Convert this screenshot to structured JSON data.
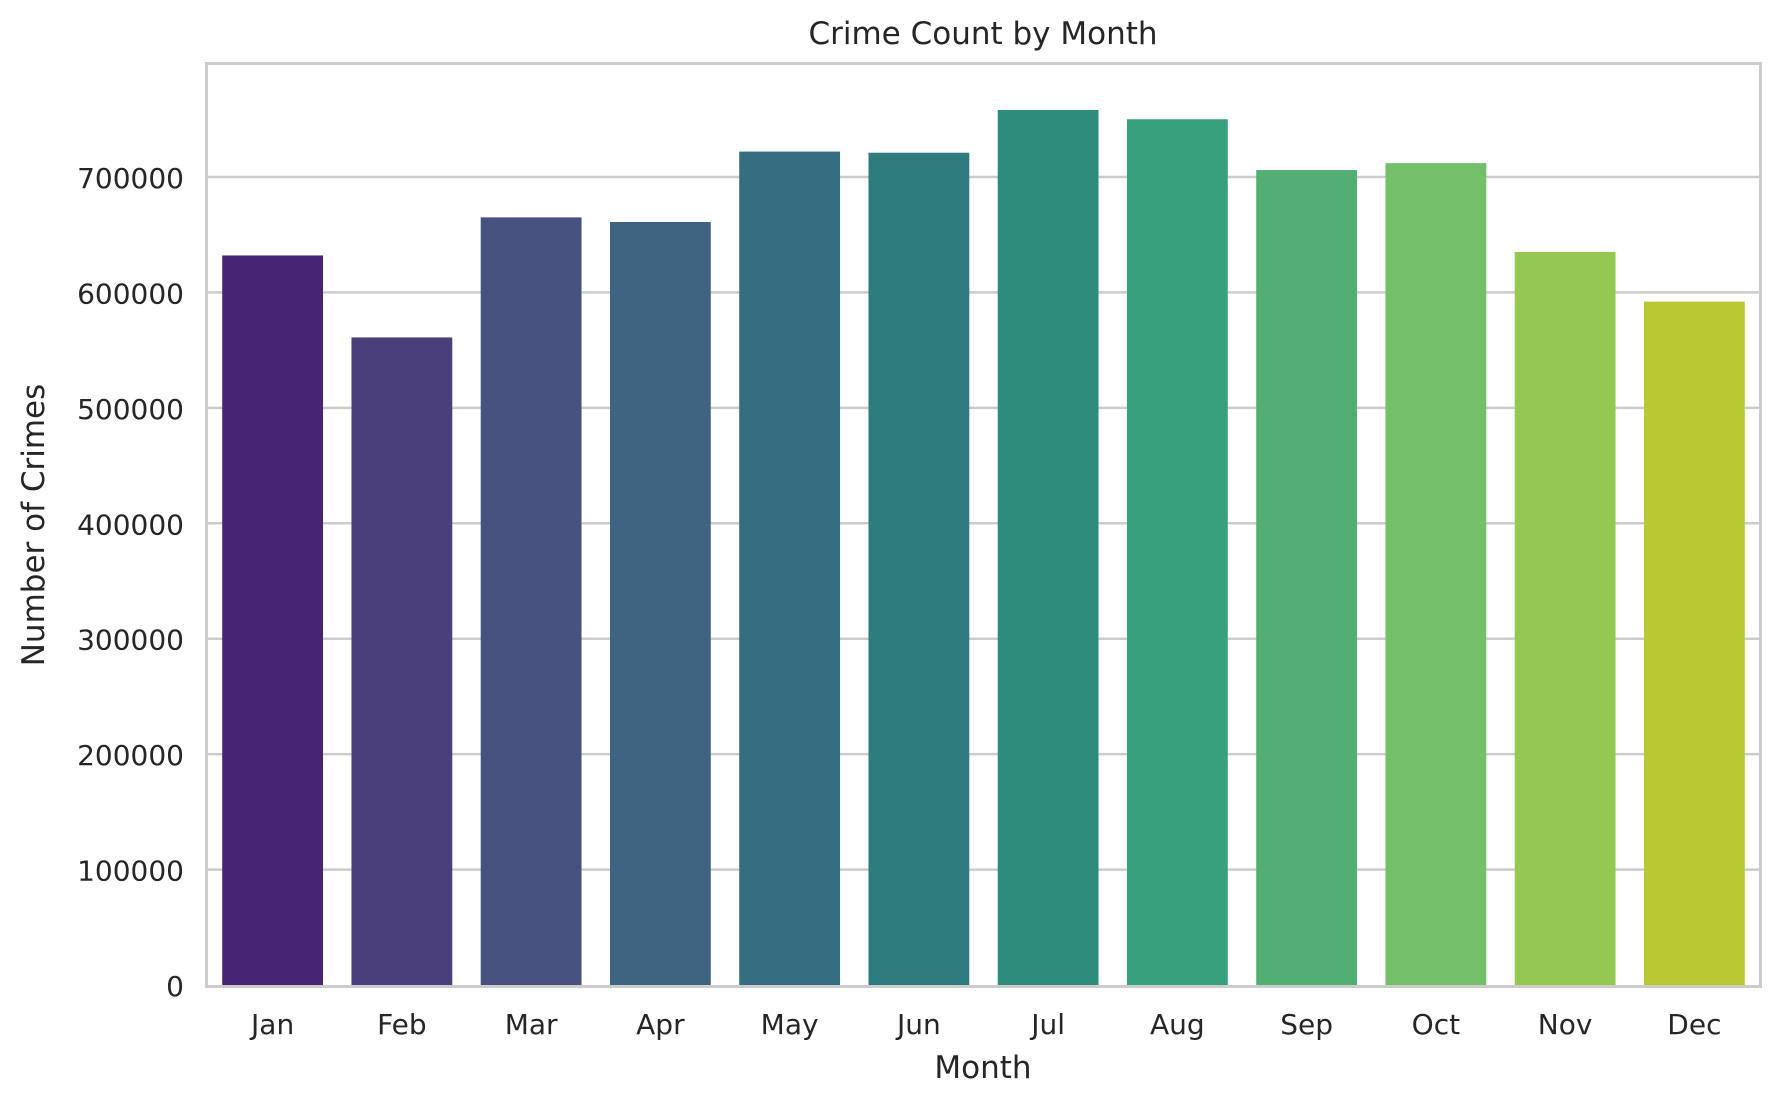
{
  "chart_data": {
    "type": "bar",
    "title": "Crime Count by Month",
    "xlabel": "Month",
    "ylabel": "Number of Crimes",
    "categories": [
      "Jan",
      "Feb",
      "Mar",
      "Apr",
      "May",
      "Jun",
      "Jul",
      "Aug",
      "Sep",
      "Oct",
      "Nov",
      "Dec"
    ],
    "values": [
      632000,
      561000,
      665000,
      661000,
      722000,
      721000,
      758000,
      750000,
      706000,
      712000,
      635000,
      592000
    ],
    "colors": [
      "#482475",
      "#4a3f79",
      "#475280",
      "#3e6482",
      "#366d80",
      "#2f7c7e",
      "#2e8c7d",
      "#38a07c",
      "#52ae72",
      "#74bf6a",
      "#94c852",
      "#b9c934"
    ],
    "ylim": [
      0,
      797000
    ],
    "yticks": [
      0,
      100000,
      200000,
      300000,
      400000,
      500000,
      600000,
      700000
    ],
    "ytick_labels": [
      "0",
      "100000",
      "200000",
      "300000",
      "400000",
      "500000",
      "600000",
      "700000"
    ],
    "grid": "horizontal",
    "legend": "none",
    "style": {
      "grid_color": "#cccccc",
      "frame_color": "#cccccc",
      "text_color": "#262626",
      "background": "#ffffff"
    }
  }
}
